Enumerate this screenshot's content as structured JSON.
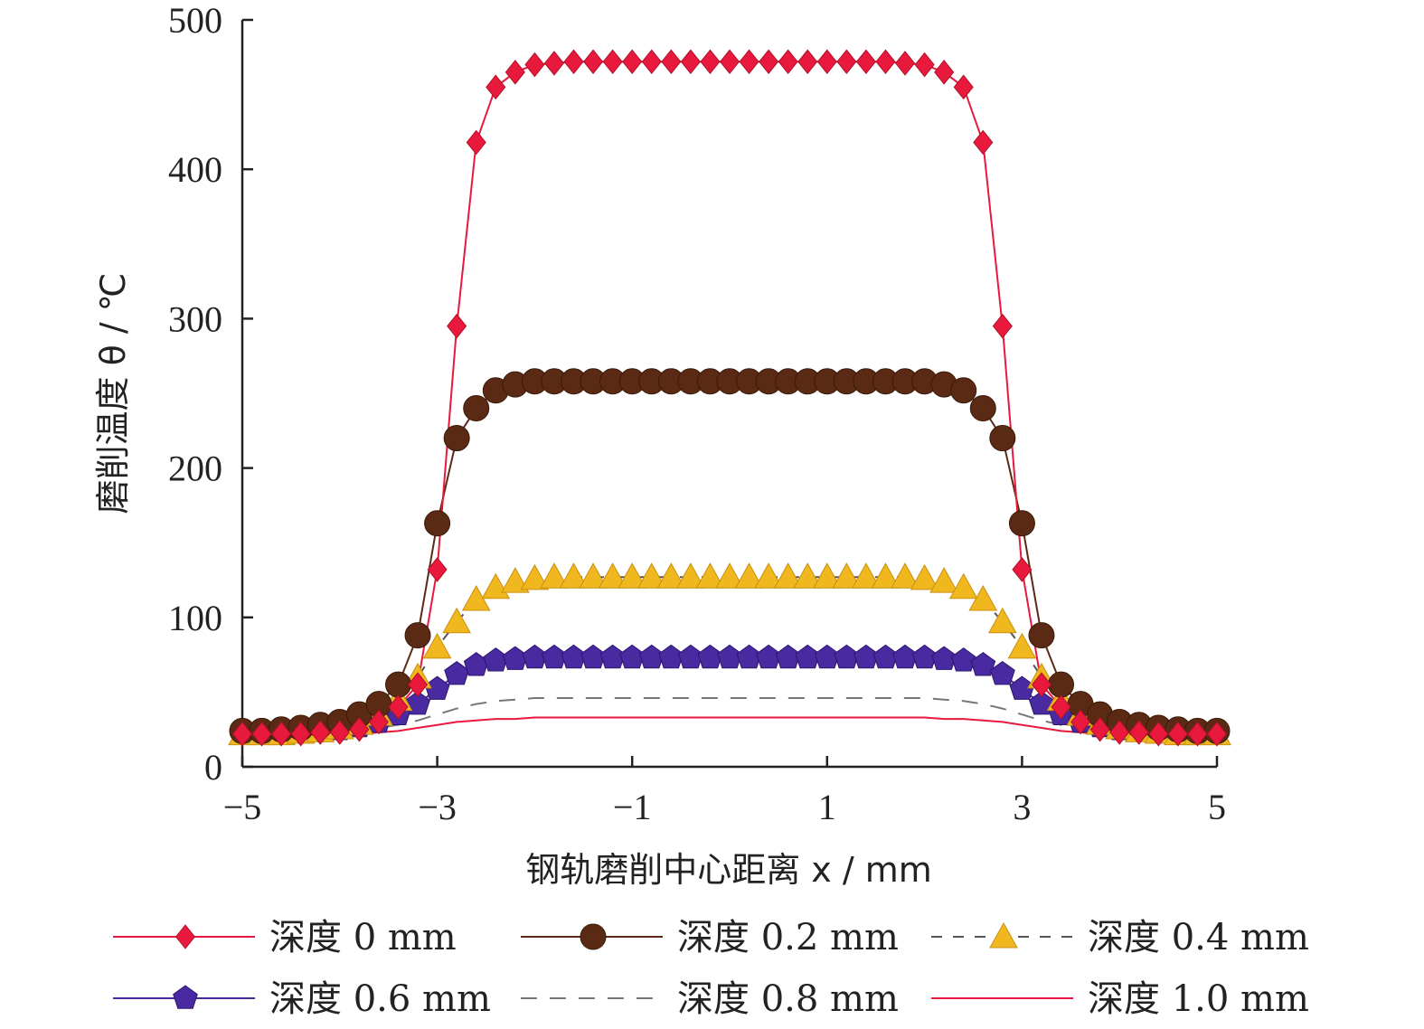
{
  "chart_data": {
    "type": "line",
    "title": "",
    "xlabel": "钢轨磨削中心距离 x / mm",
    "ylabel": "磨削温度 θ / ℃",
    "xlim": [
      -5,
      5
    ],
    "ylim": [
      0,
      500
    ],
    "xticks": [
      -5,
      -3,
      -1,
      1,
      3,
      5
    ],
    "xtick_labels": [
      "−5",
      "−3",
      "−1",
      "1",
      "3",
      "5"
    ],
    "yticks": [
      0,
      100,
      200,
      300,
      400,
      500
    ],
    "ytick_labels": [
      "0",
      "100",
      "200",
      "300",
      "400",
      "500"
    ],
    "grid": false,
    "legend_position": "bottom",
    "x": [
      -5.0,
      -4.8,
      -4.6,
      -4.4,
      -4.2,
      -4.0,
      -3.8,
      -3.6,
      -3.4,
      -3.2,
      -3.0,
      -2.8,
      -2.6,
      -2.4,
      -2.2,
      -2.0,
      -1.8,
      -1.6,
      -1.4,
      -1.2,
      -1.0,
      -0.8,
      -0.6,
      -0.4,
      -0.2,
      0.0,
      0.2,
      0.4,
      0.6,
      0.8,
      1.0,
      1.2,
      1.4,
      1.6,
      1.8,
      2.0,
      2.2,
      2.4,
      2.6,
      2.8,
      3.0,
      3.2,
      3.4,
      3.6,
      3.8,
      4.0,
      4.2,
      4.4,
      4.6,
      4.8,
      5.0
    ],
    "series": [
      {
        "name": "深度 0 mm",
        "color": "#e8193c",
        "marker": "diamond",
        "dash": "solid",
        "values": [
          22,
          22,
          22,
          22,
          23,
          23,
          25,
          30,
          40,
          55,
          132,
          295,
          418,
          455,
          465,
          470,
          471,
          472,
          472,
          472,
          472,
          472,
          472,
          472,
          472,
          472,
          472,
          472,
          472,
          472,
          472,
          472,
          472,
          472,
          471,
          470,
          465,
          455,
          418,
          295,
          132,
          55,
          40,
          30,
          25,
          23,
          23,
          22,
          22,
          22,
          22
        ]
      },
      {
        "name": "深度 0.2 mm",
        "color": "#5b2a14",
        "marker": "circle",
        "dash": "solid",
        "values": [
          24,
          24,
          25,
          26,
          28,
          30,
          35,
          42,
          55,
          88,
          163,
          220,
          240,
          252,
          256,
          258,
          258,
          258,
          258,
          258,
          258,
          258,
          258,
          258,
          258,
          258,
          258,
          258,
          258,
          258,
          258,
          258,
          258,
          258,
          258,
          258,
          256,
          252,
          240,
          220,
          163,
          88,
          55,
          42,
          35,
          30,
          28,
          26,
          25,
          24,
          24
        ]
      },
      {
        "name": "深度 0.4 mm",
        "color": "#f0b81e",
        "marker": "triangle",
        "dash": "dashed",
        "values": [
          22,
          22,
          22,
          23,
          24,
          26,
          29,
          35,
          45,
          60,
          80,
          97,
          112,
          120,
          124,
          126,
          127,
          127,
          127,
          127,
          127,
          127,
          127,
          127,
          127,
          127,
          127,
          127,
          127,
          127,
          127,
          127,
          127,
          127,
          127,
          126,
          124,
          120,
          112,
          97,
          80,
          60,
          45,
          35,
          29,
          26,
          24,
          23,
          22,
          22,
          22
        ]
      },
      {
        "name": "深度 0.6 mm",
        "color": "#4a2aa0",
        "marker": "pentagon",
        "dash": "solid",
        "values": [
          23,
          23,
          23,
          23,
          24,
          25,
          27,
          30,
          35,
          42,
          52,
          62,
          68,
          71,
          72,
          73,
          73,
          73,
          73,
          73,
          73,
          73,
          73,
          73,
          73,
          73,
          73,
          73,
          73,
          73,
          73,
          73,
          73,
          73,
          73,
          73,
          72,
          71,
          68,
          62,
          52,
          42,
          35,
          30,
          27,
          25,
          24,
          23,
          23,
          23,
          23
        ]
      },
      {
        "name": "深度 0.8 mm",
        "color": "#777777",
        "marker": "none",
        "dash": "longdash",
        "values": [
          22,
          22,
          22,
          22,
          23,
          23,
          24,
          26,
          28,
          31,
          35,
          39,
          42,
          44,
          45,
          46,
          46,
          46,
          46,
          46,
          46,
          46,
          46,
          46,
          46,
          46,
          46,
          46,
          46,
          46,
          46,
          46,
          46,
          46,
          46,
          46,
          45,
          44,
          42,
          39,
          35,
          31,
          28,
          26,
          24,
          23,
          23,
          22,
          22,
          22,
          22
        ]
      },
      {
        "name": "深度 1.0 mm",
        "color": "#e8193c",
        "marker": "none",
        "dash": "solid",
        "values": [
          20,
          20,
          20,
          20,
          21,
          21,
          22,
          23,
          24,
          26,
          28,
          30,
          31,
          32,
          32,
          33,
          33,
          33,
          33,
          33,
          33,
          33,
          33,
          33,
          33,
          33,
          33,
          33,
          33,
          33,
          33,
          33,
          33,
          33,
          33,
          33,
          32,
          32,
          31,
          30,
          28,
          26,
          24,
          23,
          22,
          21,
          21,
          20,
          20,
          20,
          20
        ]
      }
    ]
  }
}
